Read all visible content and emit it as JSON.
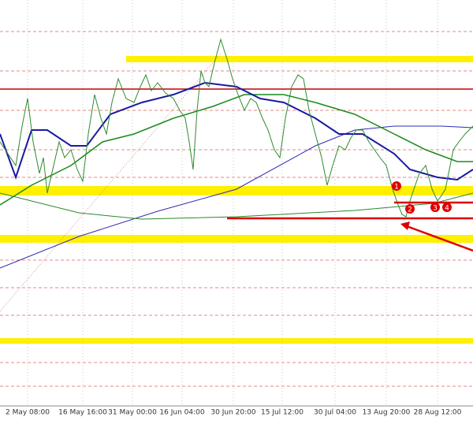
{
  "x_axis": {
    "labels": [
      "2 May 08:00",
      "16 May 16:00",
      "31 May 00:00",
      "16 Jun 04:00",
      "30 Jun 20:00",
      "15 Jul 12:00",
      "30 Jul 04:00",
      "13 Aug 20:00",
      "28 Aug 12:00"
    ]
  },
  "markers": [
    "1",
    "2",
    "3",
    "4"
  ]
}
